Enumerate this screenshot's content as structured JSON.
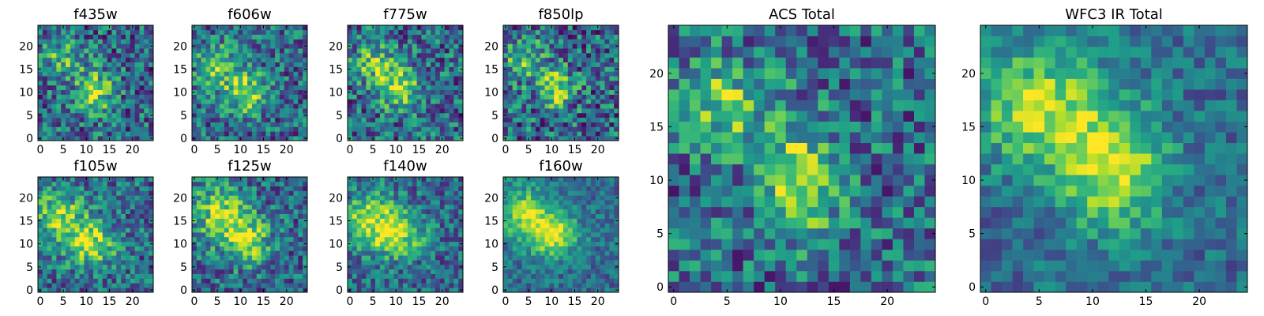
{
  "chart_data": [
    {
      "type": "heatmap",
      "title": "f435w",
      "xticks": [
        "0",
        "5",
        "10",
        "15",
        "20"
      ],
      "yticks": [
        "0",
        "5",
        "10",
        "15",
        "20"
      ],
      "grid": "25x25",
      "xlim": [
        0,
        25
      ],
      "ylim": [
        0,
        25
      ],
      "colormap": "viridis"
    },
    {
      "type": "heatmap",
      "title": "f606w",
      "xticks": [
        "0",
        "5",
        "10",
        "15",
        "20"
      ],
      "yticks": [
        "0",
        "5",
        "10",
        "15",
        "20"
      ],
      "grid": "25x25",
      "xlim": [
        0,
        25
      ],
      "ylim": [
        0,
        25
      ],
      "colormap": "viridis"
    },
    {
      "type": "heatmap",
      "title": "f775w",
      "xticks": [
        "0",
        "5",
        "10",
        "15",
        "20"
      ],
      "yticks": [
        "0",
        "5",
        "10",
        "15",
        "20"
      ],
      "grid": "25x25",
      "xlim": [
        0,
        25
      ],
      "ylim": [
        0,
        25
      ],
      "colormap": "viridis"
    },
    {
      "type": "heatmap",
      "title": "f850lp",
      "xticks": [
        "0",
        "5",
        "10",
        "15",
        "20"
      ],
      "yticks": [
        "0",
        "5",
        "10",
        "15",
        "20"
      ],
      "grid": "25x25",
      "xlim": [
        0,
        25
      ],
      "ylim": [
        0,
        25
      ],
      "colormap": "viridis"
    },
    {
      "type": "heatmap",
      "title": "f105w",
      "xticks": [
        "0",
        "5",
        "10",
        "15",
        "20"
      ],
      "yticks": [
        "0",
        "5",
        "10",
        "15",
        "20"
      ],
      "grid": "25x25",
      "xlim": [
        0,
        25
      ],
      "ylim": [
        0,
        25
      ],
      "colormap": "viridis"
    },
    {
      "type": "heatmap",
      "title": "f125w",
      "xticks": [
        "0",
        "5",
        "10",
        "15",
        "20"
      ],
      "yticks": [
        "0",
        "5",
        "10",
        "15",
        "20"
      ],
      "grid": "25x25",
      "xlim": [
        0,
        25
      ],
      "ylim": [
        0,
        25
      ],
      "colormap": "viridis"
    },
    {
      "type": "heatmap",
      "title": "f140w",
      "xticks": [
        "0",
        "5",
        "10",
        "15",
        "20"
      ],
      "yticks": [
        "0",
        "5",
        "10",
        "15",
        "20"
      ],
      "grid": "25x25",
      "xlim": [
        0,
        25
      ],
      "ylim": [
        0,
        25
      ],
      "colormap": "viridis"
    },
    {
      "type": "heatmap",
      "title": "f160w",
      "xticks": [
        "0",
        "5",
        "10",
        "15",
        "20"
      ],
      "yticks": [
        "0",
        "5",
        "10",
        "15",
        "20"
      ],
      "grid": "25x25",
      "xlim": [
        0,
        25
      ],
      "ylim": [
        0,
        25
      ],
      "colormap": "viridis"
    },
    {
      "type": "heatmap",
      "title": "ACS Total",
      "xticks": [
        "0",
        "5",
        "10",
        "15",
        "20"
      ],
      "yticks": [
        "0",
        "5",
        "10",
        "15",
        "20"
      ],
      "grid": "25x25",
      "xlim": [
        0,
        25
      ],
      "ylim": [
        0,
        25
      ],
      "colormap": "viridis"
    },
    {
      "type": "heatmap",
      "title": "WFC3 IR Total",
      "xticks": [
        "0",
        "5",
        "10",
        "15",
        "20"
      ],
      "yticks": [
        "0",
        "5",
        "10",
        "15",
        "20"
      ],
      "grid": "25x25",
      "xlim": [
        0,
        25
      ],
      "ylim": [
        0,
        25
      ],
      "colormap": "viridis"
    }
  ]
}
